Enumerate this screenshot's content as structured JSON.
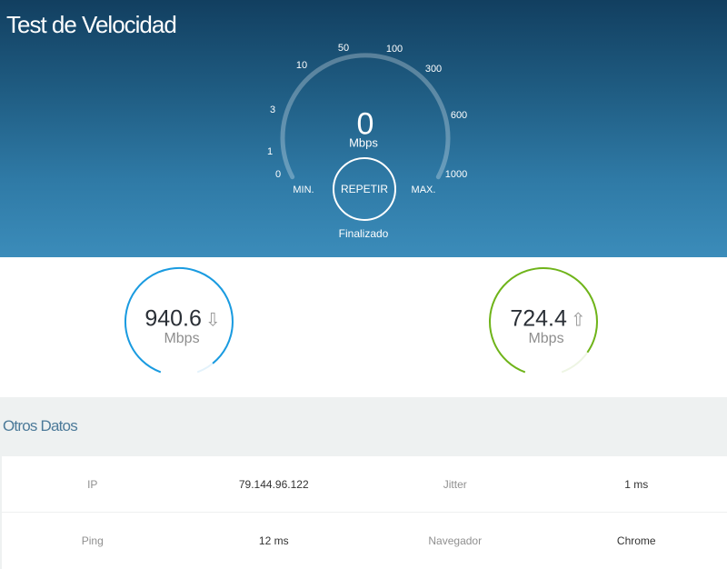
{
  "header": {
    "title": "Test de Velocidad"
  },
  "gauge": {
    "ticks": [
      "0",
      "1",
      "3",
      "10",
      "50",
      "100",
      "300",
      "600",
      "1000"
    ],
    "min_label": "MIN.",
    "max_label": "MAX.",
    "current_speed": "0",
    "unit": "Mbps",
    "repeat_label": "REPETIR",
    "status": "Finalizado"
  },
  "results": {
    "download": {
      "value": "940.6",
      "unit": "Mbps",
      "icon": "arrow-down-icon",
      "arrow": "⇩",
      "color": "#1a9be0"
    },
    "upload": {
      "value": "724.4",
      "unit": "Mbps",
      "icon": "arrow-up-icon",
      "arrow": "⇧",
      "color": "#6fb41a"
    }
  },
  "other": {
    "title": "Otros Datos",
    "rows": [
      [
        {
          "label": "IP",
          "value": "79.144.96.122"
        },
        {
          "label": "Jitter",
          "value": "1 ms"
        }
      ],
      [
        {
          "label": "Ping",
          "value": "12 ms"
        },
        {
          "label": "Navegador",
          "value": "Chrome"
        }
      ]
    ]
  }
}
